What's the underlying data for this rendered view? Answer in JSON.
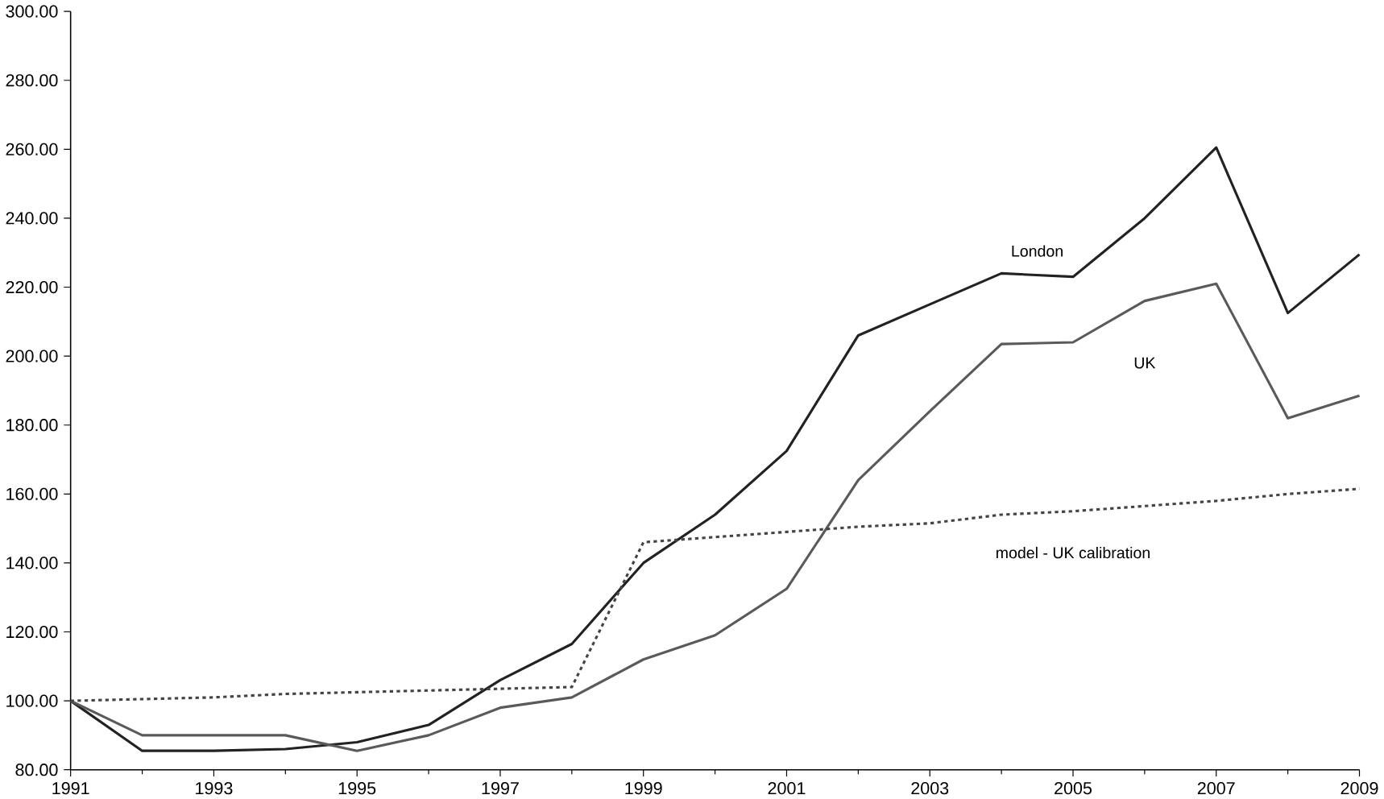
{
  "chart_data": {
    "type": "line",
    "x": [
      1991,
      1992,
      1993,
      1994,
      1995,
      1996,
      1997,
      1998,
      1999,
      2000,
      2001,
      2002,
      2003,
      2004,
      2005,
      2006,
      2007,
      2008,
      2009
    ],
    "series": [
      {
        "name": "London",
        "color": "#222222",
        "line_style": "solid",
        "values": [
          100,
          85.5,
          85.5,
          86,
          88,
          93,
          106,
          116.5,
          140,
          154,
          172.5,
          206,
          215,
          224,
          223,
          240,
          260.5,
          212.5,
          229.5
        ]
      },
      {
        "name": "UK",
        "color": "#5a5a5a",
        "line_style": "solid",
        "values": [
          100,
          90,
          90,
          90,
          85.5,
          90,
          98,
          101,
          112,
          119,
          132.5,
          164,
          184,
          203.5,
          204,
          216,
          221,
          182,
          188.5
        ]
      },
      {
        "name": "model - UK calibration",
        "color": "#444444",
        "line_style": "dotted",
        "values": [
          100,
          100.5,
          101,
          102,
          102.5,
          103,
          103.5,
          104,
          146,
          147.5,
          149,
          150.5,
          151.5,
          154,
          155,
          156.5,
          158,
          160,
          161.5
        ]
      }
    ],
    "xlim": [
      1991,
      2009
    ],
    "xticks": [
      1991,
      1993,
      1995,
      1997,
      1999,
      2001,
      2003,
      2005,
      2007,
      2009
    ],
    "ylim": [
      80,
      300
    ],
    "yticks": [
      {
        "value": 80,
        "label": "80.00"
      },
      {
        "value": 100,
        "label": "100.00"
      },
      {
        "value": 120,
        "label": "120.00"
      },
      {
        "value": 140,
        "label": "140.00"
      },
      {
        "value": 160,
        "label": "160.00"
      },
      {
        "value": 180,
        "label": "180.00"
      },
      {
        "value": 200,
        "label": "200.00"
      },
      {
        "value": 220,
        "label": "220.00"
      },
      {
        "value": 240,
        "label": "240.00"
      },
      {
        "value": 260,
        "label": "260.00"
      },
      {
        "value": 280,
        "label": "280.00"
      },
      {
        "value": 300,
        "label": "300.00"
      }
    ],
    "grid": false,
    "legend": false,
    "marker": "none"
  }
}
